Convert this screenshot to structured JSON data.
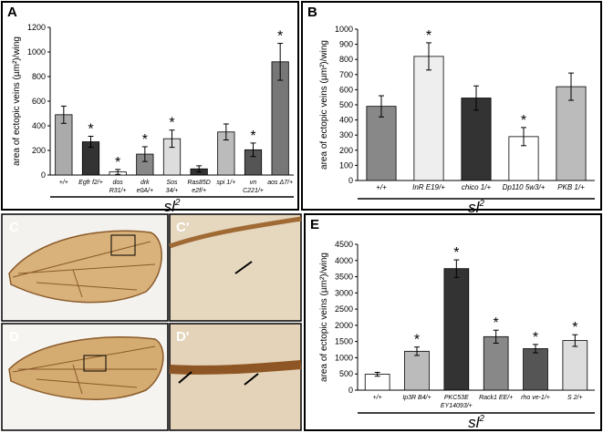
{
  "chart_data": [
    {
      "type": "bar",
      "label": "A",
      "categories": [
        [
          "+/+"
        ],
        [
          "Egfr f2/+"
        ],
        [
          "dos",
          "R31/+"
        ],
        [
          "drk",
          "e0A/+"
        ],
        [
          "Sos",
          "34/+"
        ],
        [
          "Ras85D",
          "e2f/+"
        ],
        [
          "spi 1/+"
        ],
        [
          "vn",
          "C221/+"
        ],
        [
          "aos Δ7/+"
        ]
      ],
      "values": [
        490,
        270,
        25,
        170,
        295,
        50,
        350,
        205,
        920
      ],
      "errors": [
        70,
        45,
        20,
        60,
        70,
        25,
        65,
        55,
        150
      ],
      "colors": [
        "#aaaaaa",
        "#333333",
        "#ffffff",
        "#888888",
        "#dddddd",
        "#333333",
        "#bbbbbb",
        "#555555",
        "#777777"
      ],
      "significant": [
        false,
        true,
        true,
        true,
        true,
        false,
        false,
        true,
        true
      ],
      "marker": "*",
      "ylabel": "area of ectopic veins (µm²)/wing",
      "xlabel": {
        "text": "sl",
        "superscript": "2"
      },
      "ylim": [
        0,
        1200
      ],
      "yticks": [
        0,
        200,
        400,
        600,
        800,
        1000,
        1200
      ]
    },
    {
      "type": "bar",
      "label": "B",
      "categories": [
        [
          "+/+"
        ],
        [
          "InR E19/+"
        ],
        [
          "chico 1/+"
        ],
        [
          "Dp110 5w3/+"
        ],
        [
          "PKB 1/+"
        ]
      ],
      "values": [
        490,
        820,
        545,
        290,
        620
      ],
      "errors": [
        70,
        90,
        80,
        60,
        90
      ],
      "colors": [
        "#888888",
        "#eeeeee",
        "#333333",
        "#ffffff",
        "#bbbbbb"
      ],
      "significant": [
        false,
        true,
        false,
        true,
        false
      ],
      "marker": "*",
      "ylabel": "area of ectopic veins (µm²)/wing",
      "xlabel": {
        "text": "sl",
        "superscript": "2"
      },
      "ylim": [
        0,
        1000
      ],
      "yticks": [
        0,
        100,
        200,
        300,
        400,
        500,
        600,
        700,
        800,
        900,
        1000
      ]
    },
    {
      "type": "bar",
      "label": "E",
      "categories": [
        [
          "+/+"
        ],
        [
          "Ip3R B4/+"
        ],
        [
          "PKC53E",
          "EY14093/+"
        ],
        [
          "Rack1 EE/+"
        ],
        [
          "rho ve-1/+"
        ],
        [
          "S 2/+"
        ]
      ],
      "values": [
        490,
        1200,
        3750,
        1650,
        1280,
        1530
      ],
      "errors": [
        60,
        130,
        270,
        200,
        130,
        180
      ],
      "colors": [
        "#ffffff",
        "#bbbbbb",
        "#333333",
        "#888888",
        "#555555",
        "#dddddd"
      ],
      "significant": [
        false,
        true,
        true,
        true,
        true,
        true
      ],
      "marker": "*",
      "ylabel": "area of ectopic veins (µm²)/wing",
      "xlabel": {
        "text": "sl",
        "superscript": "2"
      },
      "ylim": [
        0,
        4500
      ],
      "yticks": [
        0,
        500,
        1000,
        1500,
        2000,
        2500,
        3000,
        3500,
        4000,
        4500
      ]
    }
  ],
  "photos": [
    {
      "label": "C"
    },
    {
      "label": "C'"
    },
    {
      "label": "D"
    },
    {
      "label": "D'"
    }
  ]
}
